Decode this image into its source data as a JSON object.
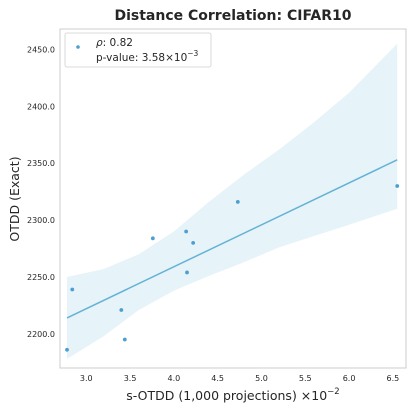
{
  "chart_data": {
    "type": "scatter",
    "title": "Distance Correlation: CIFAR10",
    "xlabel": "s-OTDD (1,000 projections) ×10",
    "xlabel_exponent": "−2",
    "ylabel": "OTDD (Exact)",
    "xlim": [
      2.7,
      6.65
    ],
    "ylim": [
      2170,
      2468
    ],
    "x_ticks": [
      3.0,
      3.5,
      4.0,
      4.5,
      5.0,
      5.5,
      6.0,
      6.5
    ],
    "x_tick_labels": [
      "3.0",
      "3.5",
      "4.0",
      "4.5",
      "5.0",
      "5.5",
      "6.0",
      "6.5"
    ],
    "y_ticks": [
      2200,
      2250,
      2300,
      2350,
      2400,
      2450
    ],
    "y_tick_labels": [
      "2200.0",
      "2250.0",
      "2300.0",
      "2350.0",
      "2400.0",
      "2450.0"
    ],
    "grid": false,
    "legend_position": "top-left",
    "legend": {
      "rho_symbol": "ρ",
      "rho_value": ": 0.82",
      "pvalue_prefix": "p-value: 3.58×10",
      "pvalue_exponent": "−3"
    },
    "series": [
      {
        "points": [
          {
            "x": 2.78,
            "y": 2186
          },
          {
            "x": 2.84,
            "y": 2239
          },
          {
            "x": 3.4,
            "y": 2221
          },
          {
            "x": 3.44,
            "y": 2195
          },
          {
            "x": 3.76,
            "y": 2284
          },
          {
            "x": 4.14,
            "y": 2290
          },
          {
            "x": 4.15,
            "y": 2254
          },
          {
            "x": 4.22,
            "y": 2280
          },
          {
            "x": 4.73,
            "y": 2316
          },
          {
            "x": 6.55,
            "y": 2330
          }
        ]
      }
    ],
    "regression": {
      "x": [
        2.78,
        6.55
      ],
      "y": [
        2214,
        2353
      ]
    },
    "confidence_band": {
      "x": [
        2.78,
        3.2,
        3.6,
        4.0,
        4.4,
        4.8,
        5.2,
        5.6,
        6.0,
        6.55
      ],
      "upper": [
        2250,
        2257,
        2270,
        2290,
        2316,
        2340,
        2362,
        2386,
        2412,
        2455
      ],
      "lower": [
        2178,
        2198,
        2221,
        2238,
        2251,
        2263,
        2276,
        2286,
        2296,
        2310
      ]
    },
    "colors": {
      "point": "#4c9fd0",
      "line": "#64b3d4",
      "band": "#d6ebf5",
      "frame": "#cccccc",
      "text": "#262626"
    }
  }
}
